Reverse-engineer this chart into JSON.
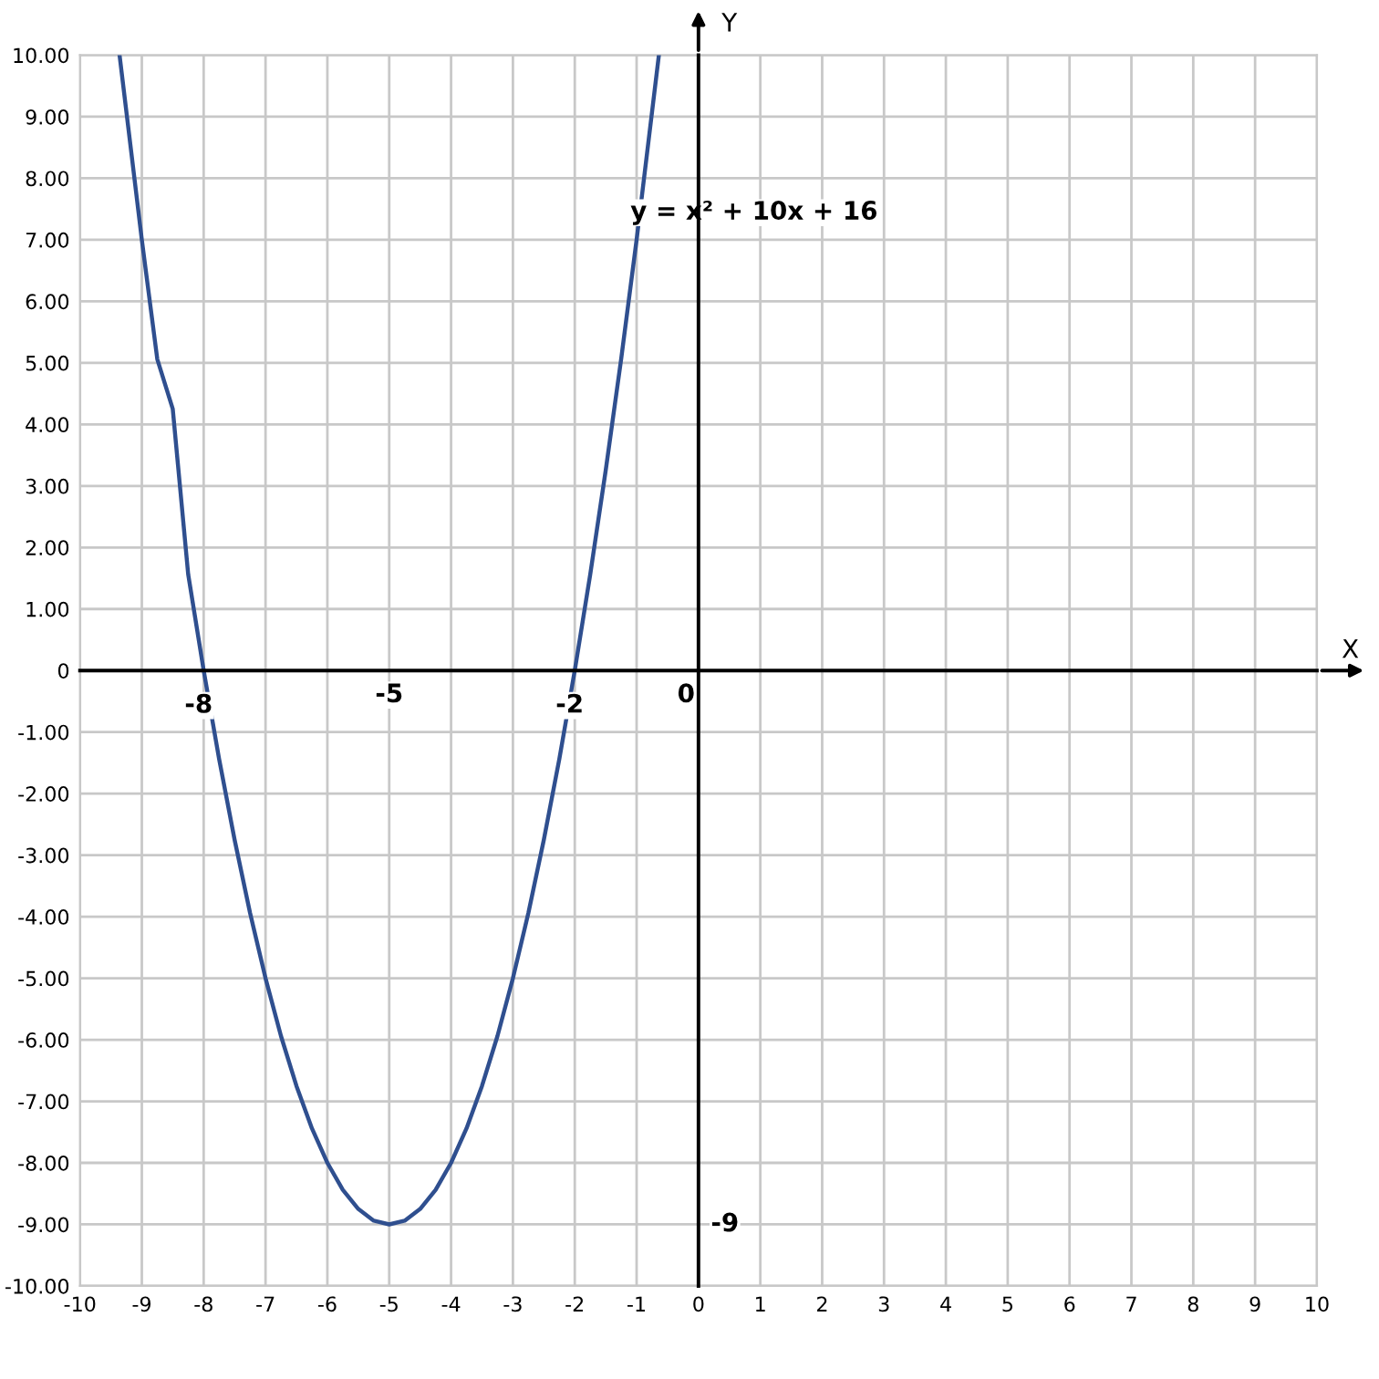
{
  "chart_data": {
    "type": "line",
    "xlabel": "X",
    "ylabel": "Y",
    "x": [
      -9.36,
      -9,
      -8.75,
      -8.5,
      -8.25,
      -8,
      -7.75,
      -7.5,
      -7.25,
      -7,
      -6.75,
      -6.5,
      -6.25,
      -6,
      -5.75,
      -5.5,
      -5.25,
      -5,
      -4.75,
      -4.5,
      -4.25,
      -4,
      -3.75,
      -3.5,
      -3.25,
      -3,
      -2.75,
      -2.5,
      -2.25,
      -2,
      -1.75,
      -1.5,
      -1.25,
      -1,
      -0.64
    ],
    "series": [
      {
        "color": "#2f4f8f",
        "values": [
          10,
          7,
          5.06,
          4.25,
          1.56,
          0,
          -1.44,
          -2.75,
          -3.94,
          -5,
          -5.94,
          -6.75,
          -7.44,
          -8,
          -8.44,
          -8.75,
          -8.94,
          -9,
          -8.94,
          -8.75,
          -8.44,
          -8,
          -7.44,
          -6.75,
          -5.94,
          -5,
          -3.94,
          -2.75,
          -1.44,
          0,
          1.56,
          3.25,
          5.06,
          7,
          10
        ]
      }
    ],
    "xlim": [
      -10,
      10
    ],
    "ylim": [
      -10,
      10
    ],
    "xticks": [
      -10,
      -9,
      -8,
      -7,
      -6,
      -5,
      -4,
      -3,
      -2,
      -1,
      0,
      1,
      2,
      3,
      4,
      5,
      6,
      7,
      8,
      9,
      10
    ],
    "yticks": [
      {
        "value": -10,
        "label": "-10.00"
      },
      {
        "value": -9,
        "label": "-9.00"
      },
      {
        "value": -8,
        "label": "-8.00"
      },
      {
        "value": -7,
        "label": "-7.00"
      },
      {
        "value": -6,
        "label": "-6.00"
      },
      {
        "value": -5,
        "label": "-5.00"
      },
      {
        "value": -4,
        "label": "-4.00"
      },
      {
        "value": -3,
        "label": "-3.00"
      },
      {
        "value": -2,
        "label": "-2.00"
      },
      {
        "value": -1,
        "label": "-1.00"
      },
      {
        "value": 0,
        "label": "0"
      },
      {
        "value": 1,
        "label": "1.00"
      },
      {
        "value": 2,
        "label": "2.00"
      },
      {
        "value": 3,
        "label": "3.00"
      },
      {
        "value": 4,
        "label": "4.00"
      },
      {
        "value": 5,
        "label": "5.00"
      },
      {
        "value": 6,
        "label": "6.00"
      },
      {
        "value": 7,
        "label": "7.00"
      },
      {
        "value": 8,
        "label": "8.00"
      },
      {
        "value": 9,
        "label": "9.00"
      },
      {
        "value": 10,
        "label": "10.00"
      }
    ],
    "grid": true,
    "marker": "none",
    "line_style": "solid",
    "annotations": [
      "y = x² + 10x + 16",
      {
        "text": "-8",
        "x": -8,
        "y": 0
      },
      "-5",
      {
        "text": "-2",
        "x": -2,
        "y": 0
      },
      "0",
      "-9"
    ]
  }
}
